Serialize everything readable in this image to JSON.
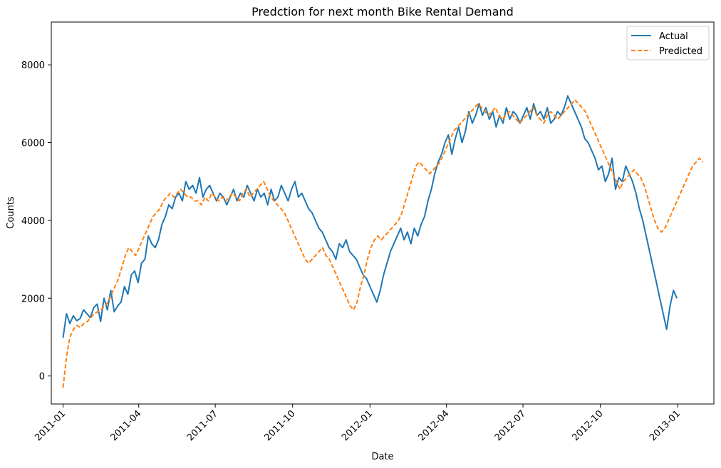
{
  "chart_data": {
    "type": "line",
    "title": "Predction for next month Bike Rental Demand",
    "xlabel": "Date",
    "ylabel": "Counts",
    "xlim": [
      "2010-12-18",
      "2013-02-13"
    ],
    "ylim": [
      -720,
      9100
    ],
    "x_ticks": [
      "2011-01",
      "2011-04",
      "2011-07",
      "2011-10",
      "2012-01",
      "2012-04",
      "2012-07",
      "2012-10",
      "2013-01"
    ],
    "y_ticks": [
      0,
      2000,
      4000,
      6000,
      8000
    ],
    "legend_position": "top-right",
    "grid": false,
    "series": [
      {
        "name": "Actual",
        "color": "#1f77b4",
        "style": "solid",
        "x_start": "2011-01-01",
        "x_end": "2012-12-31",
        "values": [
          985,
          1600,
          1350,
          1550,
          1420,
          1480,
          1700,
          1600,
          1500,
          1760,
          1850,
          1400,
          2000,
          1700,
          2200,
          1650,
          1800,
          1900,
          2300,
          2100,
          2600,
          2700,
          2400,
          2900,
          3000,
          3600,
          3400,
          3300,
          3500,
          3900,
          4100,
          4400,
          4300,
          4600,
          4700,
          4500,
          5000,
          4800,
          4900,
          4700,
          5100,
          4600,
          4800,
          4900,
          4700,
          4500,
          4700,
          4600,
          4400,
          4600,
          4800,
          4500,
          4700,
          4600,
          4900,
          4700,
          4500,
          4800,
          4600,
          4700,
          4400,
          4800,
          4500,
          4600,
          4900,
          4700,
          4500,
          4800,
          5000,
          4600,
          4700,
          4500,
          4300,
          4200,
          4000,
          3800,
          3700,
          3500,
          3300,
          3200,
          3000,
          3400,
          3300,
          3500,
          3200,
          3100,
          3000,
          2800,
          2600,
          2500,
          2300,
          2100,
          1900,
          2200,
          2600,
          2900,
          3200,
          3400,
          3600,
          3800,
          3500,
          3700,
          3400,
          3800,
          3600,
          3900,
          4100,
          4500,
          4800,
          5200,
          5500,
          5700,
          6000,
          6200,
          5700,
          6100,
          6400,
          6000,
          6300,
          6800,
          6500,
          6700,
          7000,
          6700,
          6900,
          6600,
          6800,
          6400,
          6700,
          6500,
          6900,
          6600,
          6800,
          6700,
          6500,
          6700,
          6900,
          6600,
          7000,
          6700,
          6800,
          6600,
          6900,
          6500,
          6600,
          6800,
          6700,
          6900,
          7200,
          7000,
          6800,
          6600,
          6400,
          6100,
          6000,
          5800,
          5600,
          5300,
          5400,
          5000,
          5200,
          5600,
          4800,
          5100,
          5000,
          5400,
          5200,
          5000,
          4700,
          4300,
          4000,
          3600,
          3200,
          2800,
          2400,
          2000,
          1600,
          1200,
          1800,
          2200,
          2000
        ]
      },
      {
        "name": "Predicted",
        "color": "#ff7f0e",
        "style": "dashed",
        "x_start": "2011-01-01",
        "x_end": "2013-01-31",
        "values": [
          -300,
          500,
          1000,
          1200,
          1300,
          1250,
          1350,
          1400,
          1500,
          1600,
          1650,
          1700,
          1800,
          1900,
          2100,
          2300,
          2500,
          2800,
          3100,
          3300,
          3200,
          3100,
          3300,
          3500,
          3700,
          3900,
          4100,
          4200,
          4300,
          4500,
          4600,
          4700,
          4600,
          4700,
          4800,
          4700,
          4600,
          4600,
          4500,
          4500,
          4400,
          4600,
          4500,
          4700,
          4600,
          4500,
          4600,
          4500,
          4600,
          4700,
          4600,
          4500,
          4700,
          4800,
          4600,
          4700,
          4800,
          4900,
          5000,
          4800,
          4600,
          4500,
          4400,
          4300,
          4200,
          4000,
          3800,
          3600,
          3400,
          3200,
          3000,
          2900,
          3000,
          3100,
          3200,
          3300,
          3100,
          3000,
          2800,
          2600,
          2400,
          2200,
          2000,
          1800,
          1700,
          1900,
          2300,
          2600,
          3000,
          3300,
          3500,
          3600,
          3500,
          3600,
          3700,
          3800,
          3900,
          4000,
          4200,
          4500,
          4800,
          5100,
          5400,
          5500,
          5400,
          5300,
          5200,
          5300,
          5400,
          5500,
          5700,
          5900,
          6100,
          6300,
          6400,
          6500,
          6600,
          6700,
          6800,
          6900,
          7000,
          6900,
          6800,
          6700,
          6800,
          6900,
          6700,
          6600,
          6700,
          6800,
          6700,
          6600,
          6500,
          6600,
          6700,
          6800,
          6900,
          6700,
          6600,
          6500,
          6700,
          6800,
          6700,
          6600,
          6700,
          6800,
          6900,
          7000,
          7100,
          7000,
          6900,
          6800,
          6600,
          6400,
          6200,
          6000,
          5800,
          5600,
          5400,
          5200,
          5000,
          4800,
          5000,
          5100,
          5200,
          5300,
          5200,
          5100,
          4900,
          4600,
          4300,
          4000,
          3800,
          3700,
          3800,
          4000,
          4200,
          4400,
          4600,
          4800,
          5000,
          5200,
          5400,
          5500,
          5600,
          5500
        ]
      }
    ]
  }
}
